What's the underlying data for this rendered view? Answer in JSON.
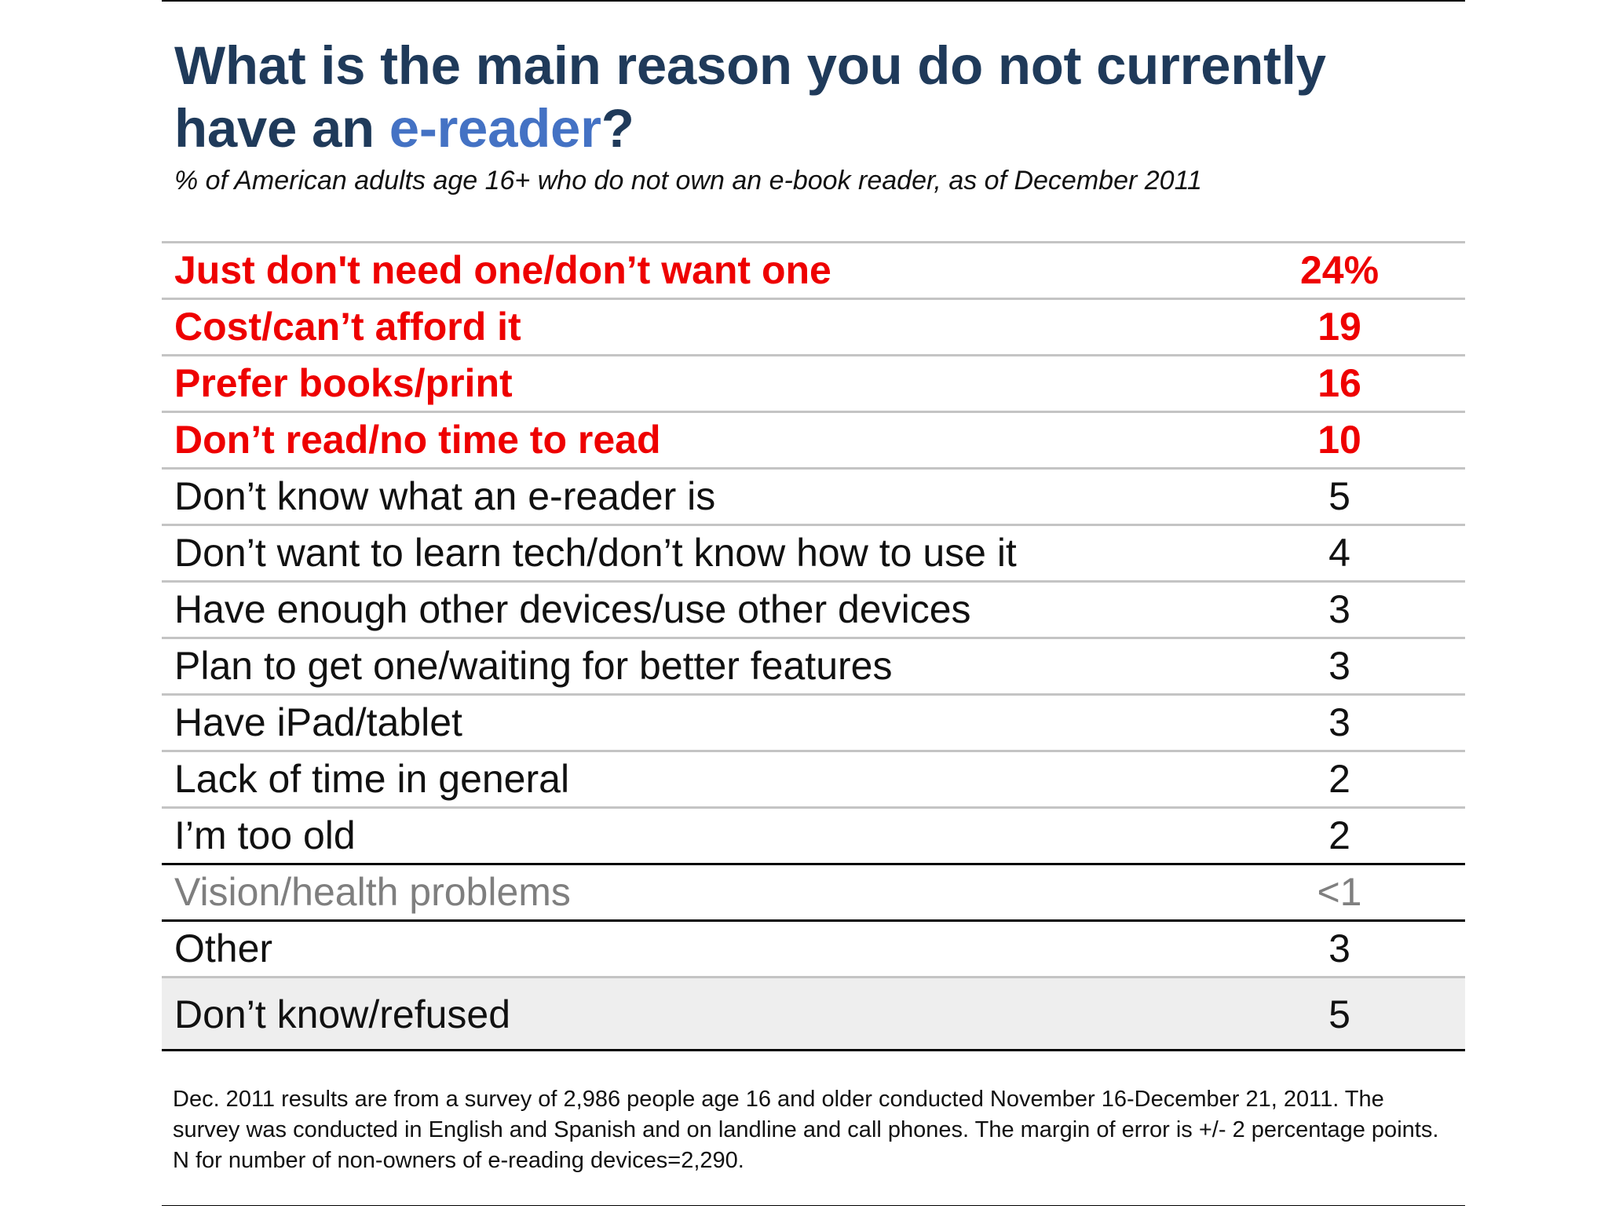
{
  "chart_data": {
    "type": "table",
    "title": {
      "prefix": "What is the main reason you do not currently have an ",
      "accent": "e-reader",
      "suffix": "?"
    },
    "subtitle": "% of American adults age 16+ who do not own an e-book reader, as of December 2011",
    "rows": [
      {
        "label": "Just don't need one/don’t want one",
        "value": "24%",
        "style": "highlight"
      },
      {
        "label": "Cost/can’t afford it",
        "value": "19",
        "style": "highlight"
      },
      {
        "label": "Prefer books/print",
        "value": "16",
        "style": "highlight"
      },
      {
        "label": "Don’t read/no time to read",
        "value": "10",
        "style": "highlight"
      },
      {
        "label": "Don’t know what an e-reader is",
        "value": "5",
        "style": "normal"
      },
      {
        "label": "Don’t want to learn tech/don’t know how to use it",
        "value": "4",
        "style": "normal"
      },
      {
        "label": "Have enough other devices/use other devices",
        "value": "3",
        "style": "normal"
      },
      {
        "label": "Plan to get one/waiting for better features",
        "value": "3",
        "style": "normal"
      },
      {
        "label": "Have iPad/tablet",
        "value": "3",
        "style": "normal"
      },
      {
        "label": "Lack of time in general",
        "value": "2",
        "style": "normal"
      },
      {
        "label": "I’m too old",
        "value": "2",
        "style": "normal"
      },
      {
        "label": "Vision/health problems",
        "value": "<1",
        "style": "muted"
      },
      {
        "label": "Other",
        "value": "3",
        "style": "normal"
      },
      {
        "label": "Don’t know/refused",
        "value": "5",
        "style": "shaded"
      }
    ],
    "footnote": "Dec. 2011 results are from a survey of 2,986 people age 16 and older conducted November 16-December 21, 2011. The survey was conducted in English and Spanish and on landline and call phones. The margin of error is +/- 2 percentage points. N for number of non-owners of e-reading devices=2,290."
  },
  "colors": {
    "title": "#1f3a5a",
    "title_accent": "#4472c4",
    "highlight": "#ee0000",
    "muted": "#7f7f7f",
    "shaded_row": "#eeeeee"
  }
}
